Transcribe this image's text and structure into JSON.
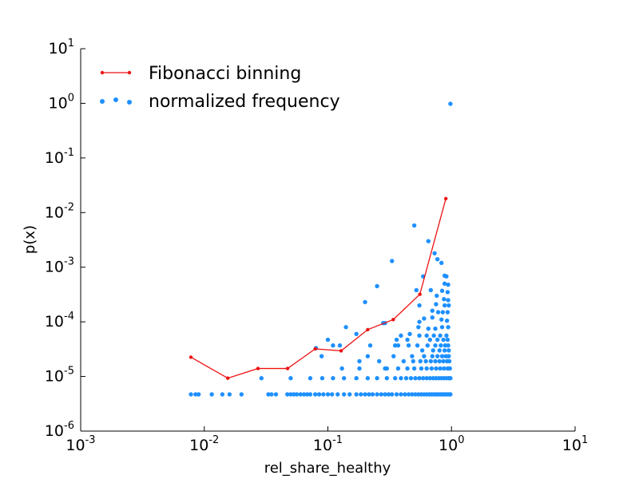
{
  "chart_data": {
    "type": "scatter",
    "title": "",
    "xlabel": "rel_share_healthy",
    "ylabel": "p(x)",
    "xscale": "log",
    "yscale": "log",
    "xlim": [
      0.001,
      10
    ],
    "ylim": [
      1e-06,
      10
    ],
    "grid": false,
    "legend_position": "top-left",
    "x_ticks": [
      {
        "base": "10",
        "exp": "-3",
        "value": 0.001
      },
      {
        "base": "10",
        "exp": "-2",
        "value": 0.01
      },
      {
        "base": "10",
        "exp": "-1",
        "value": 0.1
      },
      {
        "base": "10",
        "exp": "0",
        "value": 1
      },
      {
        "base": "10",
        "exp": "1",
        "value": 10
      }
    ],
    "y_ticks": [
      {
        "base": "10",
        "exp": "-6",
        "value": 1e-06
      },
      {
        "base": "10",
        "exp": "-5",
        "value": 1e-05
      },
      {
        "base": "10",
        "exp": "-4",
        "value": 0.0001
      },
      {
        "base": "10",
        "exp": "-3",
        "value": 0.001
      },
      {
        "base": "10",
        "exp": "-2",
        "value": 0.01
      },
      {
        "base": "10",
        "exp": "-1",
        "value": 0.1
      },
      {
        "base": "10",
        "exp": "0",
        "value": 1
      },
      {
        "base": "10",
        "exp": "1",
        "value": 10
      }
    ],
    "series": [
      {
        "name": "Fibonacci binning",
        "kind": "line",
        "color": "#ee1111",
        "points": [
          [
            0.0078,
            2.25e-05
          ],
          [
            0.0155,
            9.3e-06
          ],
          [
            0.0272,
            1.4e-05
          ],
          [
            0.0472,
            1.4e-05
          ],
          [
            0.079,
            3.2e-05
          ],
          [
            0.128,
            2.95e-05
          ],
          [
            0.21,
            7.2e-05
          ],
          [
            0.338,
            0.00011
          ],
          [
            0.555,
            0.00032
          ],
          [
            0.9,
            0.018
          ]
        ]
      },
      {
        "name": "normalized frequency",
        "kind": "scatter",
        "color": "#1e90ff",
        "points": [
          [
            0.0078,
            4.7e-06
          ],
          [
            0.0085,
            4.7e-06
          ],
          [
            0.009,
            4.7e-06
          ],
          [
            0.0115,
            4.7e-06
          ],
          [
            0.014,
            4.7e-06
          ],
          [
            0.016,
            4.7e-06
          ],
          [
            0.02,
            4.7e-06
          ],
          [
            0.033,
            4.7e-06
          ],
          [
            0.035,
            4.7e-06
          ],
          [
            0.038,
            4.7e-06
          ],
          [
            0.047,
            4.7e-06
          ],
          [
            0.05,
            4.7e-06
          ],
          [
            0.053,
            4.7e-06
          ],
          [
            0.056,
            4.7e-06
          ],
          [
            0.06,
            4.7e-06
          ],
          [
            0.064,
            4.7e-06
          ],
          [
            0.068,
            4.7e-06
          ],
          [
            0.072,
            4.7e-06
          ],
          [
            0.079,
            4.7e-06
          ],
          [
            0.085,
            4.7e-06
          ],
          [
            0.092,
            4.7e-06
          ],
          [
            0.1,
            4.7e-06
          ],
          [
            0.108,
            4.7e-06
          ],
          [
            0.12,
            4.7e-06
          ],
          [
            0.135,
            4.7e-06
          ],
          [
            0.15,
            4.7e-06
          ],
          [
            0.17,
            4.7e-06
          ],
          [
            0.185,
            4.7e-06
          ],
          [
            0.2,
            4.7e-06
          ],
          [
            0.215,
            4.7e-06
          ],
          [
            0.23,
            4.7e-06
          ],
          [
            0.25,
            4.7e-06
          ],
          [
            0.27,
            4.7e-06
          ],
          [
            0.29,
            4.7e-06
          ],
          [
            0.31,
            4.7e-06
          ],
          [
            0.33,
            4.7e-06
          ],
          [
            0.36,
            4.7e-06
          ],
          [
            0.39,
            4.7e-06
          ],
          [
            0.42,
            4.7e-06
          ],
          [
            0.45,
            4.7e-06
          ],
          [
            0.48,
            4.7e-06
          ],
          [
            0.51,
            4.7e-06
          ],
          [
            0.54,
            4.7e-06
          ],
          [
            0.57,
            4.7e-06
          ],
          [
            0.6,
            4.7e-06
          ],
          [
            0.63,
            4.7e-06
          ],
          [
            0.66,
            4.7e-06
          ],
          [
            0.69,
            4.7e-06
          ],
          [
            0.72,
            4.7e-06
          ],
          [
            0.75,
            4.7e-06
          ],
          [
            0.78,
            4.7e-06
          ],
          [
            0.81,
            4.7e-06
          ],
          [
            0.84,
            4.7e-06
          ],
          [
            0.87,
            4.7e-06
          ],
          [
            0.9,
            4.7e-06
          ],
          [
            0.93,
            4.7e-06
          ],
          [
            0.96,
            4.7e-06
          ],
          [
            0.98,
            4.7e-06
          ],
          [
            0.029,
            9.3e-06
          ],
          [
            0.05,
            9.3e-06
          ],
          [
            0.072,
            9.3e-06
          ],
          [
            0.09,
            9.3e-06
          ],
          [
            0.11,
            9.3e-06
          ],
          [
            0.135,
            9.3e-06
          ],
          [
            0.17,
            9.3e-06
          ],
          [
            0.21,
            9.3e-06
          ],
          [
            0.25,
            9.3e-06
          ],
          [
            0.3,
            9.3e-06
          ],
          [
            0.35,
            9.3e-06
          ],
          [
            0.39,
            9.3e-06
          ],
          [
            0.43,
            9.3e-06
          ],
          [
            0.47,
            9.3e-06
          ],
          [
            0.51,
            9.3e-06
          ],
          [
            0.55,
            9.3e-06
          ],
          [
            0.59,
            9.3e-06
          ],
          [
            0.63,
            9.3e-06
          ],
          [
            0.67,
            9.3e-06
          ],
          [
            0.71,
            9.3e-06
          ],
          [
            0.75,
            9.3e-06
          ],
          [
            0.79,
            9.3e-06
          ],
          [
            0.83,
            9.3e-06
          ],
          [
            0.87,
            9.3e-06
          ],
          [
            0.91,
            9.3e-06
          ],
          [
            0.95,
            9.3e-06
          ],
          [
            0.98,
            9.3e-06
          ],
          [
            0.13,
            1.4e-05
          ],
          [
            0.18,
            1.4e-05
          ],
          [
            0.29,
            1.4e-05
          ],
          [
            0.3,
            1.4e-05
          ],
          [
            0.37,
            1.4e-05
          ],
          [
            0.44,
            1.4e-05
          ],
          [
            0.5,
            1.4e-05
          ],
          [
            0.57,
            1.4e-05
          ],
          [
            0.63,
            1.4e-05
          ],
          [
            0.69,
            1.4e-05
          ],
          [
            0.75,
            1.4e-05
          ],
          [
            0.81,
            1.4e-05
          ],
          [
            0.87,
            1.4e-05
          ],
          [
            0.93,
            1.4e-05
          ],
          [
            0.97,
            1.4e-05
          ],
          [
            0.18,
            1.9e-05
          ],
          [
            0.26,
            1.9e-05
          ],
          [
            0.41,
            1.9e-05
          ],
          [
            0.49,
            1.9e-05
          ],
          [
            0.56,
            1.9e-05
          ],
          [
            0.62,
            1.9e-05
          ],
          [
            0.68,
            1.9e-05
          ],
          [
            0.74,
            1.9e-05
          ],
          [
            0.8,
            1.9e-05
          ],
          [
            0.86,
            1.9e-05
          ],
          [
            0.92,
            1.9e-05
          ],
          [
            0.96,
            1.9e-05
          ],
          [
            0.089,
            2.35e-05
          ],
          [
            0.21,
            2.35e-05
          ],
          [
            0.34,
            2.35e-05
          ],
          [
            0.48,
            2.35e-05
          ],
          [
            0.6,
            2.35e-05
          ],
          [
            0.7,
            2.35e-05
          ],
          [
            0.77,
            2.35e-05
          ],
          [
            0.84,
            2.35e-05
          ],
          [
            0.9,
            2.35e-05
          ],
          [
            0.95,
            2.35e-05
          ],
          [
            0.22,
            3.7e-05
          ],
          [
            0.35,
            3.7e-05
          ],
          [
            0.37,
            3.7e-05
          ],
          [
            0.45,
            3.7e-05
          ],
          [
            0.53,
            3.7e-05
          ],
          [
            0.64,
            3.7e-05
          ],
          [
            0.74,
            3.7e-05
          ],
          [
            0.82,
            3.7e-05
          ],
          [
            0.89,
            3.7e-05
          ],
          [
            0.94,
            3.7e-05
          ],
          [
            0.11,
            3.7e-05
          ],
          [
            0.125,
            3.7e-05
          ],
          [
            0.08,
            3.3e-05
          ],
          [
            0.58,
            3e-05
          ],
          [
            0.71,
            3e-05
          ],
          [
            0.8,
            3e-05
          ],
          [
            0.88,
            3e-05
          ],
          [
            0.95,
            3e-05
          ],
          [
            0.1,
            4.7e-05
          ],
          [
            0.36,
            4.7e-05
          ],
          [
            0.44,
            4.7e-05
          ],
          [
            0.67,
            4.7e-05
          ],
          [
            0.77,
            4.7e-05
          ],
          [
            0.86,
            4.7e-05
          ],
          [
            0.93,
            4.7e-05
          ],
          [
            0.14,
            8e-05
          ],
          [
            0.39,
            5.6e-05
          ],
          [
            0.46,
            6e-05
          ],
          [
            0.55,
            5.6e-05
          ],
          [
            0.63,
            5.6e-05
          ],
          [
            0.72,
            5.6e-05
          ],
          [
            0.81,
            5.6e-05
          ],
          [
            0.91,
            5.6e-05
          ],
          [
            0.17,
            6e-05
          ],
          [
            0.28,
            9.5e-05
          ],
          [
            0.54,
            8e-05
          ],
          [
            0.65,
            7.5e-05
          ],
          [
            0.74,
            7.5e-05
          ],
          [
            0.84,
            8e-05
          ],
          [
            0.94,
            8e-05
          ],
          [
            0.29,
            9.5e-05
          ],
          [
            0.55,
            0.0001
          ],
          [
            0.6,
            0.000115
          ],
          [
            0.7,
            0.00012
          ],
          [
            0.83,
            0.00011
          ],
          [
            0.92,
            0.000105
          ],
          [
            0.7,
            0.00016
          ],
          [
            0.78,
            0.00015
          ],
          [
            0.85,
            0.00015
          ],
          [
            0.93,
            0.00015
          ],
          [
            0.2,
            0.00023
          ],
          [
            0.55,
            0.0002
          ],
          [
            0.75,
            0.00021
          ],
          [
            0.88,
            0.0002
          ],
          [
            0.95,
            0.0002
          ],
          [
            0.25,
            0.00045
          ],
          [
            0.76,
            0.0003
          ],
          [
            0.87,
            0.00026
          ],
          [
            0.94,
            0.00025
          ],
          [
            0.52,
            0.00038
          ],
          [
            0.68,
            0.00038
          ],
          [
            0.84,
            0.00037
          ],
          [
            0.93,
            0.00035
          ],
          [
            0.88,
            0.0005
          ],
          [
            0.94,
            0.00048
          ],
          [
            0.59,
            0.00068
          ],
          [
            0.88,
            0.0007
          ],
          [
            0.91,
            0.00068
          ],
          [
            0.33,
            0.0013
          ],
          [
            0.83,
            0.0012
          ],
          [
            0.73,
            0.0018
          ],
          [
            0.77,
            0.0014
          ],
          [
            0.65,
            0.003
          ],
          [
            0.5,
            0.0058
          ],
          [
            0.98,
            0.98
          ]
        ]
      }
    ]
  }
}
